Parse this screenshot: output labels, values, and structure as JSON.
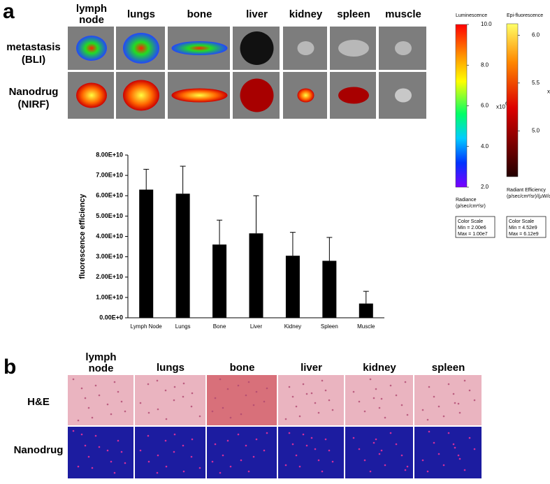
{
  "panel_a": {
    "label": "a",
    "organs": [
      [
        "lymph",
        "node"
      ],
      [
        "lungs"
      ],
      [
        "bone"
      ],
      [
        "liver"
      ],
      [
        "kidney"
      ],
      [
        "spleen"
      ],
      [
        "muscle"
      ]
    ],
    "rows": [
      [
        "metastasis",
        "(BLI)"
      ],
      [
        "Nanodrug",
        "(NIRF)"
      ]
    ]
  },
  "scales": [
    {
      "title": "Luminescence",
      "ylim": [
        2,
        10
      ],
      "ticks": [
        {
          "value": 10,
          "label": "10.0"
        },
        {
          "value": 8,
          "label": "8.0"
        },
        {
          "value": 6,
          "label": "6.0"
        },
        {
          "value": 4,
          "label": "4.0"
        },
        {
          "value": 2,
          "label": "2.0"
        }
      ],
      "multiplier": "x10",
      "exponent": "6",
      "unit": [
        "Radiance",
        "(p/sec/cm²/sr)"
      ],
      "box": [
        "Color Scale",
        "Min = 2.00e6",
        "Max = 1.00e7"
      ]
    },
    {
      "title": "Epi-fluorescence",
      "ylim": [
        4.52,
        6.12
      ],
      "ticks": [
        {
          "value": 6,
          "label": "6.0"
        },
        5.5,
        {
          "value": 5,
          "label": "5.0"
        }
      ],
      "multiplier": "x10",
      "exponent": "9",
      "unit": [
        "Radiant Efficiency",
        "(p/sec/cm²/sr)/(µW/cm²)"
      ],
      "box": [
        "Color Scale",
        "Min = 4.52e9",
        "Max = 6.12e9"
      ]
    }
  ],
  "chart_data": {
    "type": "bar",
    "y_label": "fluorescence efficiency",
    "categories": [
      "Lymph Node",
      "Lungs",
      "Bone",
      "Liver",
      "Kidney",
      "Spleen",
      "Muscle"
    ],
    "values": [
      63000000000,
      61000000000,
      36000000000,
      41500000000,
      30500000000,
      28000000000,
      7000000000
    ],
    "errors": [
      10000000000,
      13500000000,
      12000000000,
      18500000000,
      11500000000,
      11500000000,
      6000000000
    ],
    "color": "#000000",
    "ylim": [
      0,
      80000000000
    ],
    "yticks": [
      {
        "value": 0,
        "label": "0.00E+0"
      },
      {
        "value": 10000000000,
        "label": "1.00E+10"
      },
      {
        "value": 20000000000,
        "label": "2.00E+10"
      },
      {
        "value": 30000000000,
        "label": "3.00E+10"
      },
      {
        "value": 40000000000,
        "label": "4.00E+10"
      },
      {
        "value": 50000000000,
        "label": "5.00E+10"
      },
      {
        "value": 60000000000,
        "label": "6.00E+10"
      },
      {
        "value": 70000000000,
        "label": "7.00E+10"
      },
      {
        "value": 80000000000,
        "label": "8.00E+10"
      }
    ]
  },
  "panel_b": {
    "label": "b",
    "organs": [
      [
        "lymph",
        "node"
      ],
      [
        "lungs"
      ],
      [
        "bone"
      ],
      [
        "liver"
      ],
      [
        "kidney"
      ],
      [
        "spleen"
      ]
    ],
    "rows": [
      [
        "H&E"
      ],
      [
        "Nanodrug"
      ]
    ]
  }
}
